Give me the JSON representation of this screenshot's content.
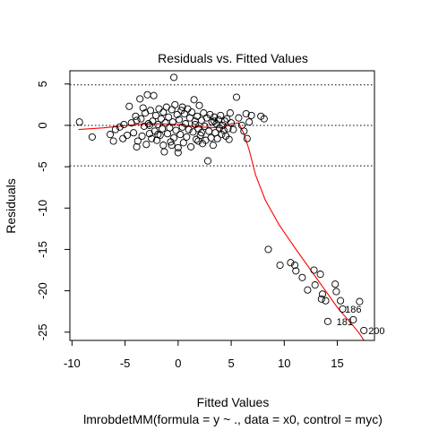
{
  "chart_data": {
    "type": "scatter",
    "title": "Residuals vs. Fitted Values",
    "xlabel": "Fitted Values",
    "ylabel": "Residuals",
    "subtitle": "lmrobdetMM(formula = y ~ ., data = x0, control = myc)",
    "xlim": [
      -10.2,
      18.5
    ],
    "ylim": [
      -26,
      6.6
    ],
    "xticks": [
      -10,
      -5,
      0,
      5,
      10,
      15
    ],
    "yticks": [
      5,
      0,
      -5,
      -10,
      -15,
      -20,
      -25
    ],
    "hlines": [
      4.9,
      0,
      -4.9
    ],
    "smooth_color": "#ff0000",
    "smooth": [
      [
        -9.4,
        -0.5
      ],
      [
        -7,
        -0.3
      ],
      [
        -4,
        0.1
      ],
      [
        -2,
        0.2
      ],
      [
        0,
        0.1
      ],
      [
        2,
        -0.2
      ],
      [
        4,
        -0.3
      ],
      [
        5,
        0.2
      ],
      [
        5.7,
        0.3
      ],
      [
        6.2,
        -1
      ],
      [
        6.7,
        -3
      ],
      [
        7.3,
        -6
      ],
      [
        8.2,
        -9
      ],
      [
        9.5,
        -12
      ],
      [
        11,
        -14.8
      ],
      [
        12.5,
        -17.5
      ],
      [
        14,
        -20.2
      ],
      [
        15,
        -22
      ],
      [
        16,
        -23.5
      ],
      [
        17,
        -25
      ],
      [
        17.5,
        -26
      ]
    ],
    "outlier_labels": [
      {
        "label": "186",
        "x": 15.3,
        "y": -22.2
      },
      {
        "label": "181",
        "x": 14.5,
        "y": -23.7
      },
      {
        "label": "200",
        "x": 17.5,
        "y": -24.8
      }
    ],
    "points": [
      [
        -9.3,
        0.4
      ],
      [
        -8.1,
        -1.4
      ],
      [
        -6.4,
        -1.1
      ],
      [
        -6.1,
        -1.9
      ],
      [
        -5.9,
        -0.5
      ],
      [
        -5.5,
        -0.2
      ],
      [
        -5.2,
        -1.6
      ],
      [
        -5.1,
        0.1
      ],
      [
        -4.8,
        -1.2
      ],
      [
        -4.6,
        2.3
      ],
      [
        -4.4,
        0.3
      ],
      [
        -4.2,
        -0.9
      ],
      [
        -4.0,
        1.1
      ],
      [
        -3.9,
        0.6
      ],
      [
        -3.8,
        -1.9
      ],
      [
        -3.6,
        3.2
      ],
      [
        -3.5,
        0.8
      ],
      [
        -3.4,
        -1.3
      ],
      [
        -3.3,
        2.1
      ],
      [
        -3.2,
        -0.1
      ],
      [
        -3.1,
        1.5
      ],
      [
        -3.0,
        -2.3
      ],
      [
        -2.9,
        3.7
      ],
      [
        -2.8,
        0.2
      ],
      [
        -2.7,
        -1.0
      ],
      [
        -2.6,
        1.8
      ],
      [
        -2.5,
        -1.6
      ],
      [
        -2.4,
        0.5
      ],
      [
        -2.3,
        3.6
      ],
      [
        -2.2,
        -0.7
      ],
      [
        -2.1,
        1.2
      ],
      [
        -2.0,
        -1.8
      ],
      [
        -1.9,
        0.1
      ],
      [
        -1.8,
        2.0
      ],
      [
        -1.7,
        -1.2
      ],
      [
        -1.6,
        0.8
      ],
      [
        -1.5,
        -0.4
      ],
      [
        -1.4,
        1.6
      ],
      [
        -1.3,
        -3.2
      ],
      [
        -1.2,
        0.3
      ],
      [
        -1.1,
        2.2
      ],
      [
        -1.0,
        -1.0
      ],
      [
        -0.9,
        1.0
      ],
      [
        -0.8,
        -0.3
      ],
      [
        -0.7,
        -2.0
      ],
      [
        -0.6,
        1.9
      ],
      [
        -0.5,
        0.4
      ],
      [
        -0.4,
        -1.5
      ],
      [
        -0.3,
        2.5
      ],
      [
        -0.2,
        -0.6
      ],
      [
        -0.1,
        1.3
      ],
      [
        0.0,
        -2.7
      ],
      [
        0.1,
        0.7
      ],
      [
        0.2,
        -1.1
      ],
      [
        0.3,
        1.8
      ],
      [
        0.4,
        -0.2
      ],
      [
        0.5,
        -2.1
      ],
      [
        0.6,
        1.4
      ],
      [
        0.7,
        0.2
      ],
      [
        0.8,
        -1.4
      ],
      [
        0.9,
        2.0
      ],
      [
        1.0,
        -0.5
      ],
      [
        1.1,
        0.9
      ],
      [
        1.2,
        -2.6
      ],
      [
        1.3,
        1.6
      ],
      [
        1.4,
        -0.8
      ],
      [
        1.5,
        3.1
      ],
      [
        1.6,
        0.1
      ],
      [
        1.7,
        -1.7
      ],
      [
        1.8,
        1.1
      ],
      [
        1.9,
        -0.4
      ],
      [
        2.0,
        2.4
      ],
      [
        2.1,
        -1.2
      ],
      [
        2.2,
        0.6
      ],
      [
        2.3,
        -2.2
      ],
      [
        2.4,
        1.5
      ],
      [
        2.5,
        -0.1
      ],
      [
        2.6,
        -1.8
      ],
      [
        2.7,
        0.9
      ],
      [
        2.8,
        -4.3
      ],
      [
        2.9,
        -0.7
      ],
      [
        3.0,
        1.3
      ],
      [
        3.1,
        -1.5
      ],
      [
        3.2,
        0.4
      ],
      [
        3.3,
        -2.4
      ],
      [
        3.4,
        1.0
      ],
      [
        3.5,
        -0.9
      ],
      [
        3.6,
        0.2
      ],
      [
        3.7,
        -1.6
      ],
      [
        3.8,
        0.7
      ],
      [
        3.9,
        -0.3
      ],
      [
        4.0,
        1.2
      ],
      [
        4.1,
        -1.1
      ],
      [
        4.2,
        0.0
      ],
      [
        4.3,
        -0.6
      ],
      [
        4.4,
        0.5
      ],
      [
        4.5,
        -1.3
      ],
      [
        4.6,
        0.8
      ],
      [
        4.7,
        -0.4
      ],
      [
        4.8,
        -1.7
      ],
      [
        4.9,
        1.5
      ],
      [
        5.0,
        0.3
      ],
      [
        5.2,
        -0.5
      ],
      [
        5.5,
        3.4
      ],
      [
        5.7,
        0.9
      ],
      [
        6.0,
        0.0
      ],
      [
        6.2,
        -0.7
      ],
      [
        6.4,
        1.4
      ],
      [
        6.5,
        -1.6
      ],
      [
        6.7,
        0.4
      ],
      [
        6.9,
        1.2
      ],
      [
        7.8,
        1.1
      ],
      [
        8.1,
        0.8
      ],
      [
        -2.7,
        0.0
      ],
      [
        -1.9,
        -1.1
      ],
      [
        -0.6,
        -2.4
      ],
      [
        0.4,
        2.2
      ],
      [
        1.6,
        0.5
      ],
      [
        2.2,
        -0.9
      ],
      [
        3.4,
        0.5
      ],
      [
        -0.4,
        5.8
      ],
      [
        -3.9,
        -2.6
      ],
      [
        0.0,
        -3.3
      ],
      [
        -1.4,
        -2.4
      ],
      [
        1.9,
        -1.9
      ],
      [
        8.5,
        -15.0
      ],
      [
        9.6,
        -16.9
      ],
      [
        10.6,
        -16.6
      ],
      [
        11.0,
        -16.9
      ],
      [
        11.1,
        -17.6
      ],
      [
        11.7,
        -18.4
      ],
      [
        12.2,
        -19.9
      ],
      [
        12.8,
        -17.5
      ],
      [
        12.9,
        -19.3
      ],
      [
        13.4,
        -18.0
      ],
      [
        13.5,
        -21.0
      ],
      [
        13.6,
        -20.4
      ],
      [
        13.9,
        -21.2
      ],
      [
        14.1,
        -23.7
      ],
      [
        14.8,
        -19.2
      ],
      [
        14.9,
        -20.1
      ],
      [
        15.3,
        -21.2
      ],
      [
        15.5,
        -22.2
      ],
      [
        16.5,
        -23.5
      ],
      [
        17.1,
        -21.3
      ],
      [
        17.5,
        -24.8
      ]
    ]
  }
}
